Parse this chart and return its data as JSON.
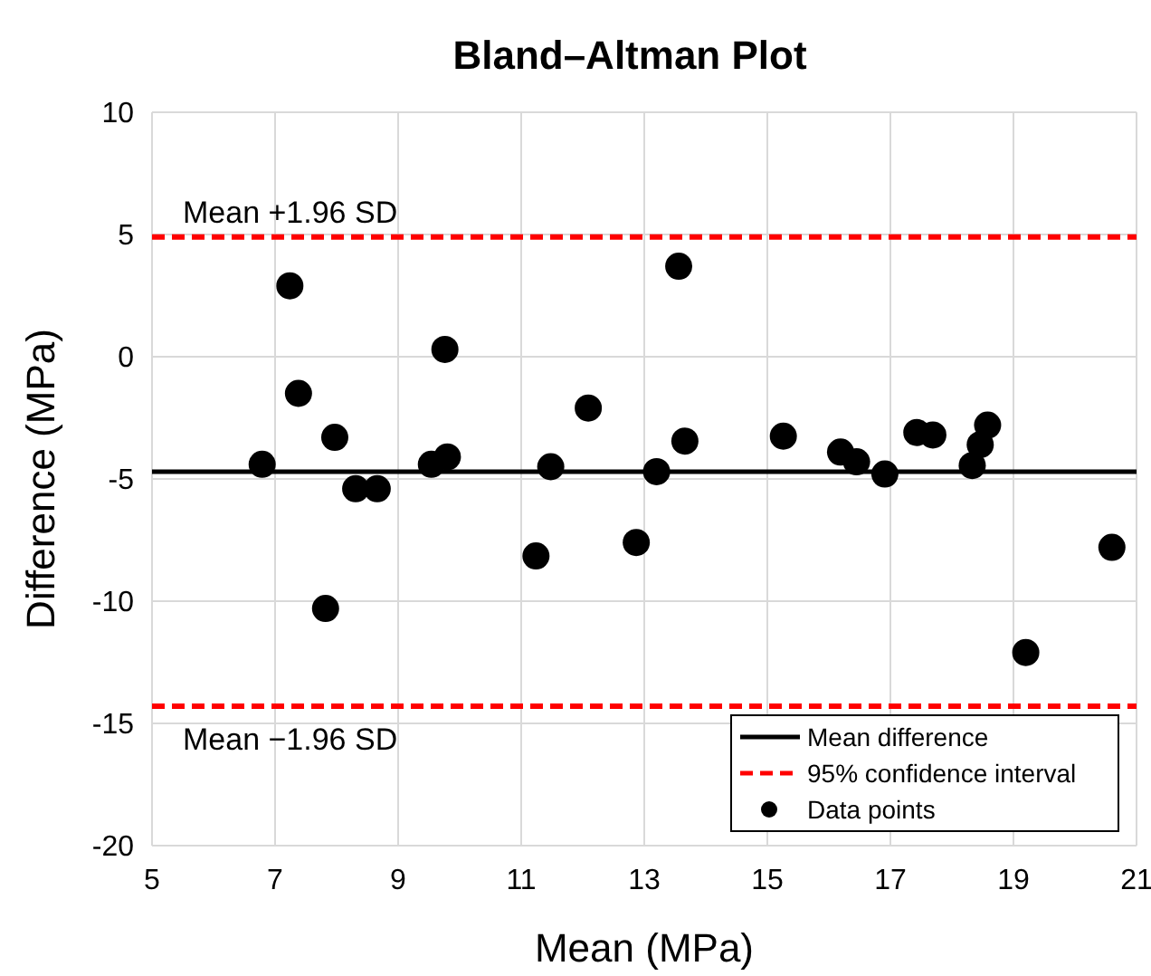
{
  "chart_data": {
    "type": "scatter",
    "title": "Bland–Altman Plot",
    "xlabel": "Mean (MPa)",
    "ylabel": "Difference (MPa)",
    "xlim": [
      5,
      21
    ],
    "xticks": [
      5,
      7,
      9,
      11,
      13,
      15,
      17,
      19,
      21
    ],
    "ylim": [
      -20,
      10
    ],
    "yticks": [
      -20,
      -15,
      -10,
      -5,
      0,
      5,
      10
    ],
    "grid": true,
    "legend": "bottom right",
    "series": [
      {
        "name": "Mean difference",
        "type": "line",
        "color": "#000000",
        "line_style": "solid",
        "marker": "none",
        "x": [
          5,
          21
        ],
        "values": [
          -4.7,
          -4.7
        ]
      },
      {
        "name": "95% confidence interval",
        "type": "line",
        "color": "#ff0000",
        "line_style": "dashed",
        "marker": "none",
        "x": [
          5,
          21
        ],
        "values": [
          4.9,
          4.9
        ]
      },
      {
        "type": "line",
        "color": "#ff0000",
        "line_style": "dashed",
        "marker": "none",
        "x": [
          5,
          21
        ],
        "values": [
          -14.3,
          -14.3
        ]
      },
      {
        "name": "Data points",
        "color": "#000000",
        "marker": "circle",
        "x": [
          6.79,
          7.24,
          7.38,
          7.82,
          7.97,
          8.31,
          8.66,
          9.54,
          9.76,
          9.8,
          11.24,
          11.48,
          12.09,
          12.87,
          13.2,
          13.56,
          13.66,
          15.26,
          16.19,
          16.45,
          16.91,
          17.43,
          17.69,
          18.33,
          18.46,
          18.58,
          19.2,
          20.6
        ],
        "values": [
          -4.4,
          2.9,
          -1.5,
          -10.3,
          -3.3,
          -5.4,
          -5.4,
          -4.4,
          0.3,
          -4.1,
          -8.15,
          -4.5,
          -2.1,
          -7.6,
          -4.7,
          3.7,
          -3.45,
          -3.25,
          -3.9,
          -4.3,
          -4.8,
          -3.1,
          -3.2,
          -4.45,
          -3.6,
          -2.8,
          -12.1,
          -7.8
        ]
      }
    ],
    "annotations": [
      {
        "text": "Mean +1.96 SD",
        "x": 5.5,
        "y": 4.9
      },
      {
        "text": "Mean −1.96 SD",
        "x": 5.5,
        "y": -14.3
      }
    ]
  }
}
